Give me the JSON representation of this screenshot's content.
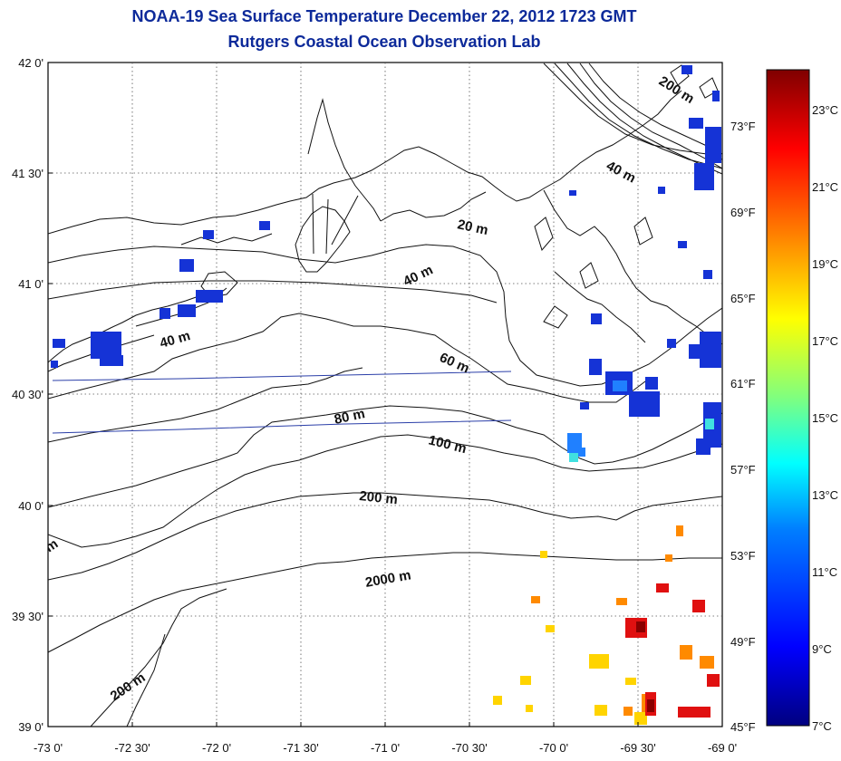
{
  "header": {
    "title": "NOAA-19 Sea Surface Temperature December 22, 2012 1723 GMT",
    "subtitle": "Rutgers Coastal Ocean Observation Lab"
  },
  "map": {
    "lon_range": [
      -73.0,
      -69.0
    ],
    "lat_range": [
      39.0,
      42.0
    ],
    "lon_ticks": [
      "-73 0'",
      "-72 30'",
      "-72 0'",
      "-71 30'",
      "-71 0'",
      "-70 30'",
      "-70 0'",
      "-69 30'",
      "-69 0'"
    ],
    "lat_ticks": [
      "42 0'",
      "41 30'",
      "41 0'",
      "40 30'",
      "40 0'",
      "39 30'",
      "39 0'"
    ],
    "grid": "dotted",
    "depth_labels": [
      "200 m",
      "40 m",
      "20 m",
      "40 m",
      "40 m",
      "60 m",
      "80 m",
      "100 m",
      "200 m",
      "2000 m",
      "200 m",
      "m"
    ]
  },
  "colorbar": {
    "celsius_labels": [
      "23°C",
      "21°C",
      "19°C",
      "17°C",
      "15°C",
      "13°C",
      "11°C",
      "9°C",
      "7°C"
    ],
    "fahrenheit_labels": [
      "73°F",
      "69°F",
      "65°F",
      "61°F",
      "57°F",
      "53°F",
      "49°F",
      "45°F"
    ],
    "colors": [
      "#00007f",
      "#0000ff",
      "#007fff",
      "#00ffff",
      "#7fff7f",
      "#ffff00",
      "#ff7f00",
      "#ff0000",
      "#7f0000"
    ],
    "range_c": [
      7,
      24.5
    ]
  }
}
